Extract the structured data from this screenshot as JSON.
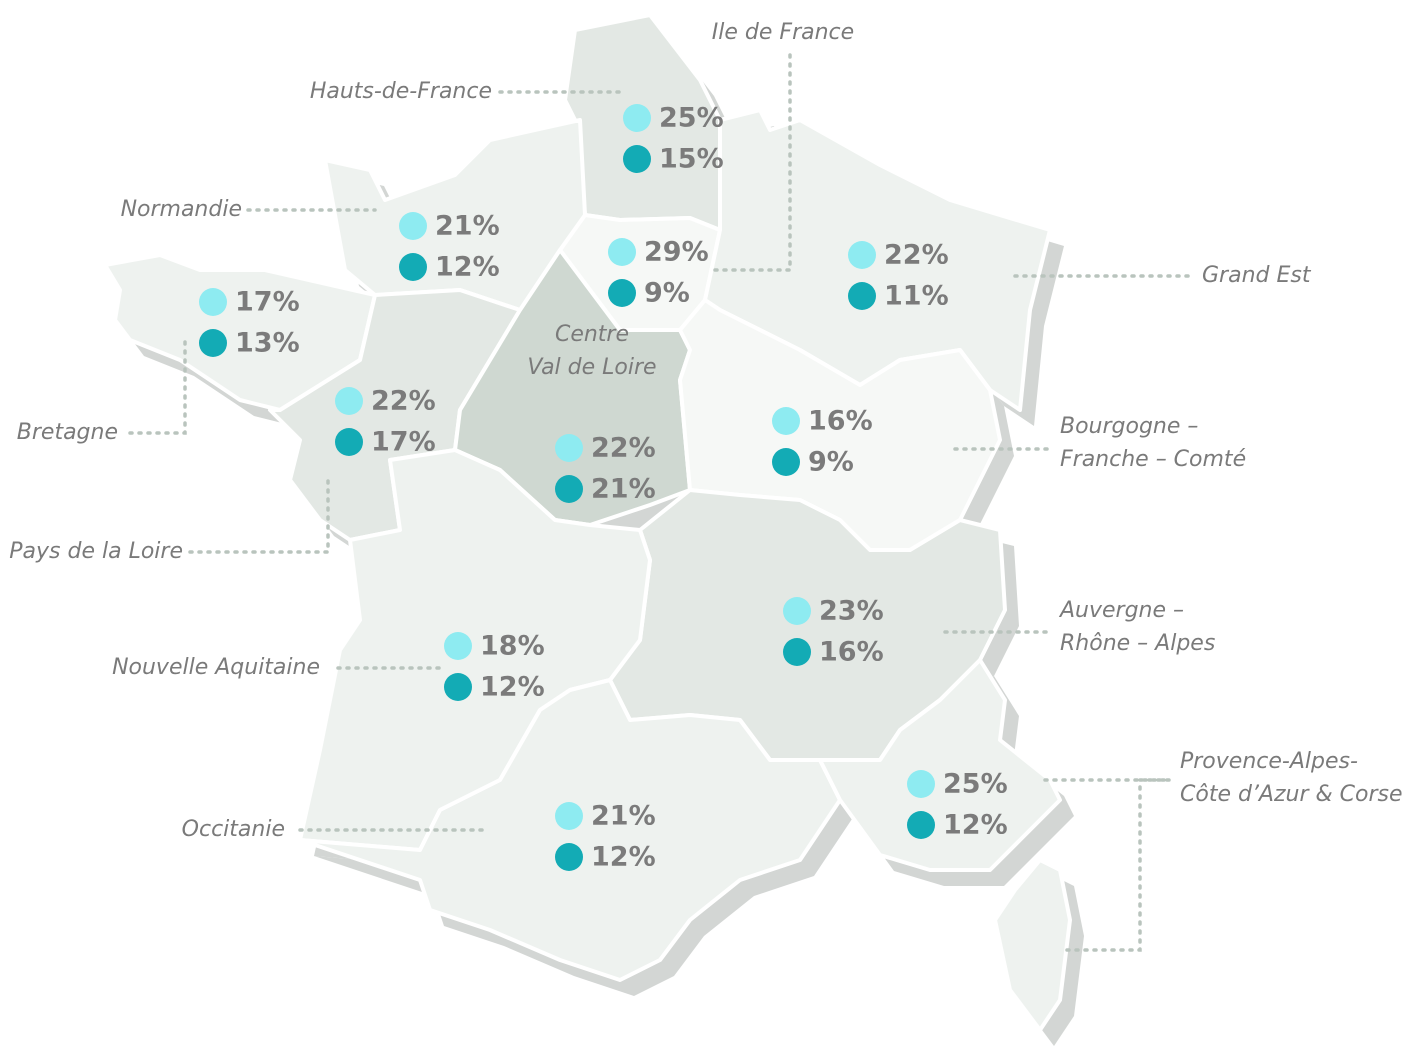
{
  "regions": [
    {
      "name": [
        "Hauts-de-France"
      ],
      "values": [
        "25%",
        "15%"
      ]
    },
    {
      "name": [
        "Ile de France"
      ],
      "values": [
        "29%",
        "9%"
      ]
    },
    {
      "name": [
        "Grand Est"
      ],
      "values": [
        "22%",
        "11%"
      ]
    },
    {
      "name": [
        "Normandie"
      ],
      "values": [
        "21%",
        "12%"
      ]
    },
    {
      "name": [
        "Bretagne"
      ],
      "values": [
        "17%",
        "13%"
      ]
    },
    {
      "name": [
        "Pays de la Loire"
      ],
      "values": [
        "22%",
        "17%"
      ]
    },
    {
      "name": [
        "Centre",
        "Val de Loire"
      ],
      "values": [
        "22%",
        "21%"
      ]
    },
    {
      "name": [
        "Bourgogne –",
        "Franche – Comté"
      ],
      "values": [
        "16%",
        "9%"
      ]
    },
    {
      "name": [
        "Auvergne –",
        "Rhône – Alpes"
      ],
      "values": [
        "23%",
        "16%"
      ]
    },
    {
      "name": [
        "Nouvelle Aquitaine"
      ],
      "values": [
        "18%",
        "12%"
      ]
    },
    {
      "name": [
        "Occitanie"
      ],
      "values": [
        "21%",
        "12%"
      ]
    },
    {
      "name": [
        "Provence-Alpes-",
        "Côte d’Azur & Corse"
      ],
      "values": [
        "25%",
        "12%"
      ]
    }
  ]
}
